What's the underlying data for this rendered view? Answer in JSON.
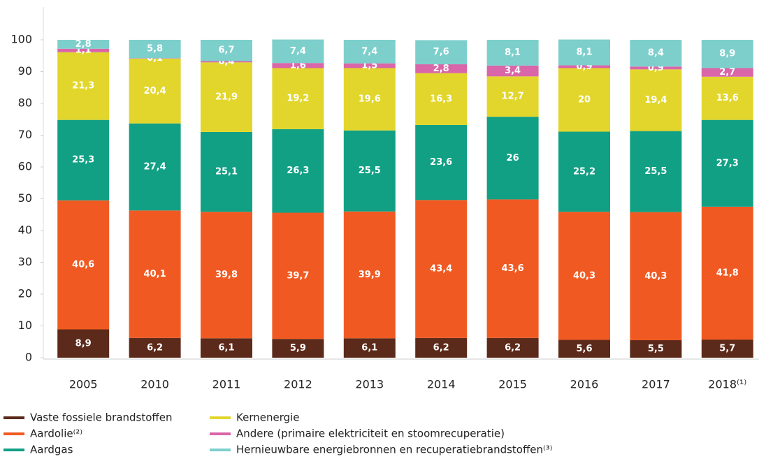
{
  "chart_data": {
    "type": "stacked-bar",
    "categories": [
      "2005",
      "2010",
      "2011",
      "2012",
      "2013",
      "2014",
      "2015",
      "2016",
      "2017",
      "2018⁽¹⁾"
    ],
    "series": [
      {
        "name": "Vaste fossiele brandstoffen",
        "color": "#5c2a1a",
        "values": [
          8.9,
          6.2,
          6.1,
          5.9,
          6.1,
          6.2,
          6.2,
          5.6,
          5.5,
          5.7
        ],
        "value_labels": [
          "8,9",
          "6,2",
          "6,1",
          "5,9",
          "6,1",
          "6,2",
          "6,2",
          "5,6",
          "5,5",
          "5,7"
        ]
      },
      {
        "name": "Aardolie⁽²⁾",
        "color": "#f05a22",
        "values": [
          40.6,
          40.1,
          39.8,
          39.7,
          39.9,
          43.4,
          43.6,
          40.3,
          40.3,
          41.8
        ],
        "value_labels": [
          "40,6",
          "40,1",
          "39,8",
          "39,7",
          "39,9",
          "43,4",
          "43,6",
          "40,3",
          "40,3",
          "41,8"
        ]
      },
      {
        "name": "Aardgas",
        "color": "#12a085",
        "values": [
          25.3,
          27.4,
          25.1,
          26.3,
          25.5,
          23.6,
          26,
          25.2,
          25.5,
          27.3
        ],
        "value_labels": [
          "25,3",
          "27,4",
          "25,1",
          "26,3",
          "25,5",
          "23,6",
          "26",
          "25,2",
          "25,5",
          "27,3"
        ]
      },
      {
        "name": "Kernenergie",
        "color": "#e2d62c",
        "values": [
          21.3,
          20.4,
          21.9,
          19.2,
          19.6,
          16.3,
          12.7,
          20,
          19.4,
          13.6
        ],
        "value_labels": [
          "21,3",
          "20,4",
          "21,9",
          "19,2",
          "19,6",
          "16,3",
          "12,7",
          "20",
          "19,4",
          "13,6"
        ]
      },
      {
        "name": "Andere (primaire elektriciteit en stoomrecuperatie)",
        "color": "#d966a8",
        "values": [
          1.1,
          0.1,
          0.4,
          1.6,
          1.5,
          2.8,
          3.4,
          0.9,
          0.9,
          2.7
        ],
        "value_labels": [
          "1,1",
          "0,1",
          "0,4",
          "1,6",
          "1,5",
          "2,8",
          "3,4",
          "0,9",
          "0,9",
          "2,7"
        ]
      },
      {
        "name": "Hernieuwbare energiebronnen en recuperatiebrandstoffen⁽³⁾",
        "color": "#7dcfcc",
        "values": [
          2.8,
          5.8,
          6.7,
          7.4,
          7.4,
          7.6,
          8.1,
          8.1,
          8.4,
          8.9
        ],
        "value_labels": [
          "2,8",
          "5,8",
          "6,7",
          "7,4",
          "7,4",
          "7,6",
          "8,1",
          "8,1",
          "8,4",
          "8,9"
        ]
      }
    ],
    "ylim": [
      0,
      100
    ],
    "yticks": [
      0,
      10,
      20,
      30,
      40,
      50,
      60,
      70,
      80,
      90,
      100
    ]
  }
}
